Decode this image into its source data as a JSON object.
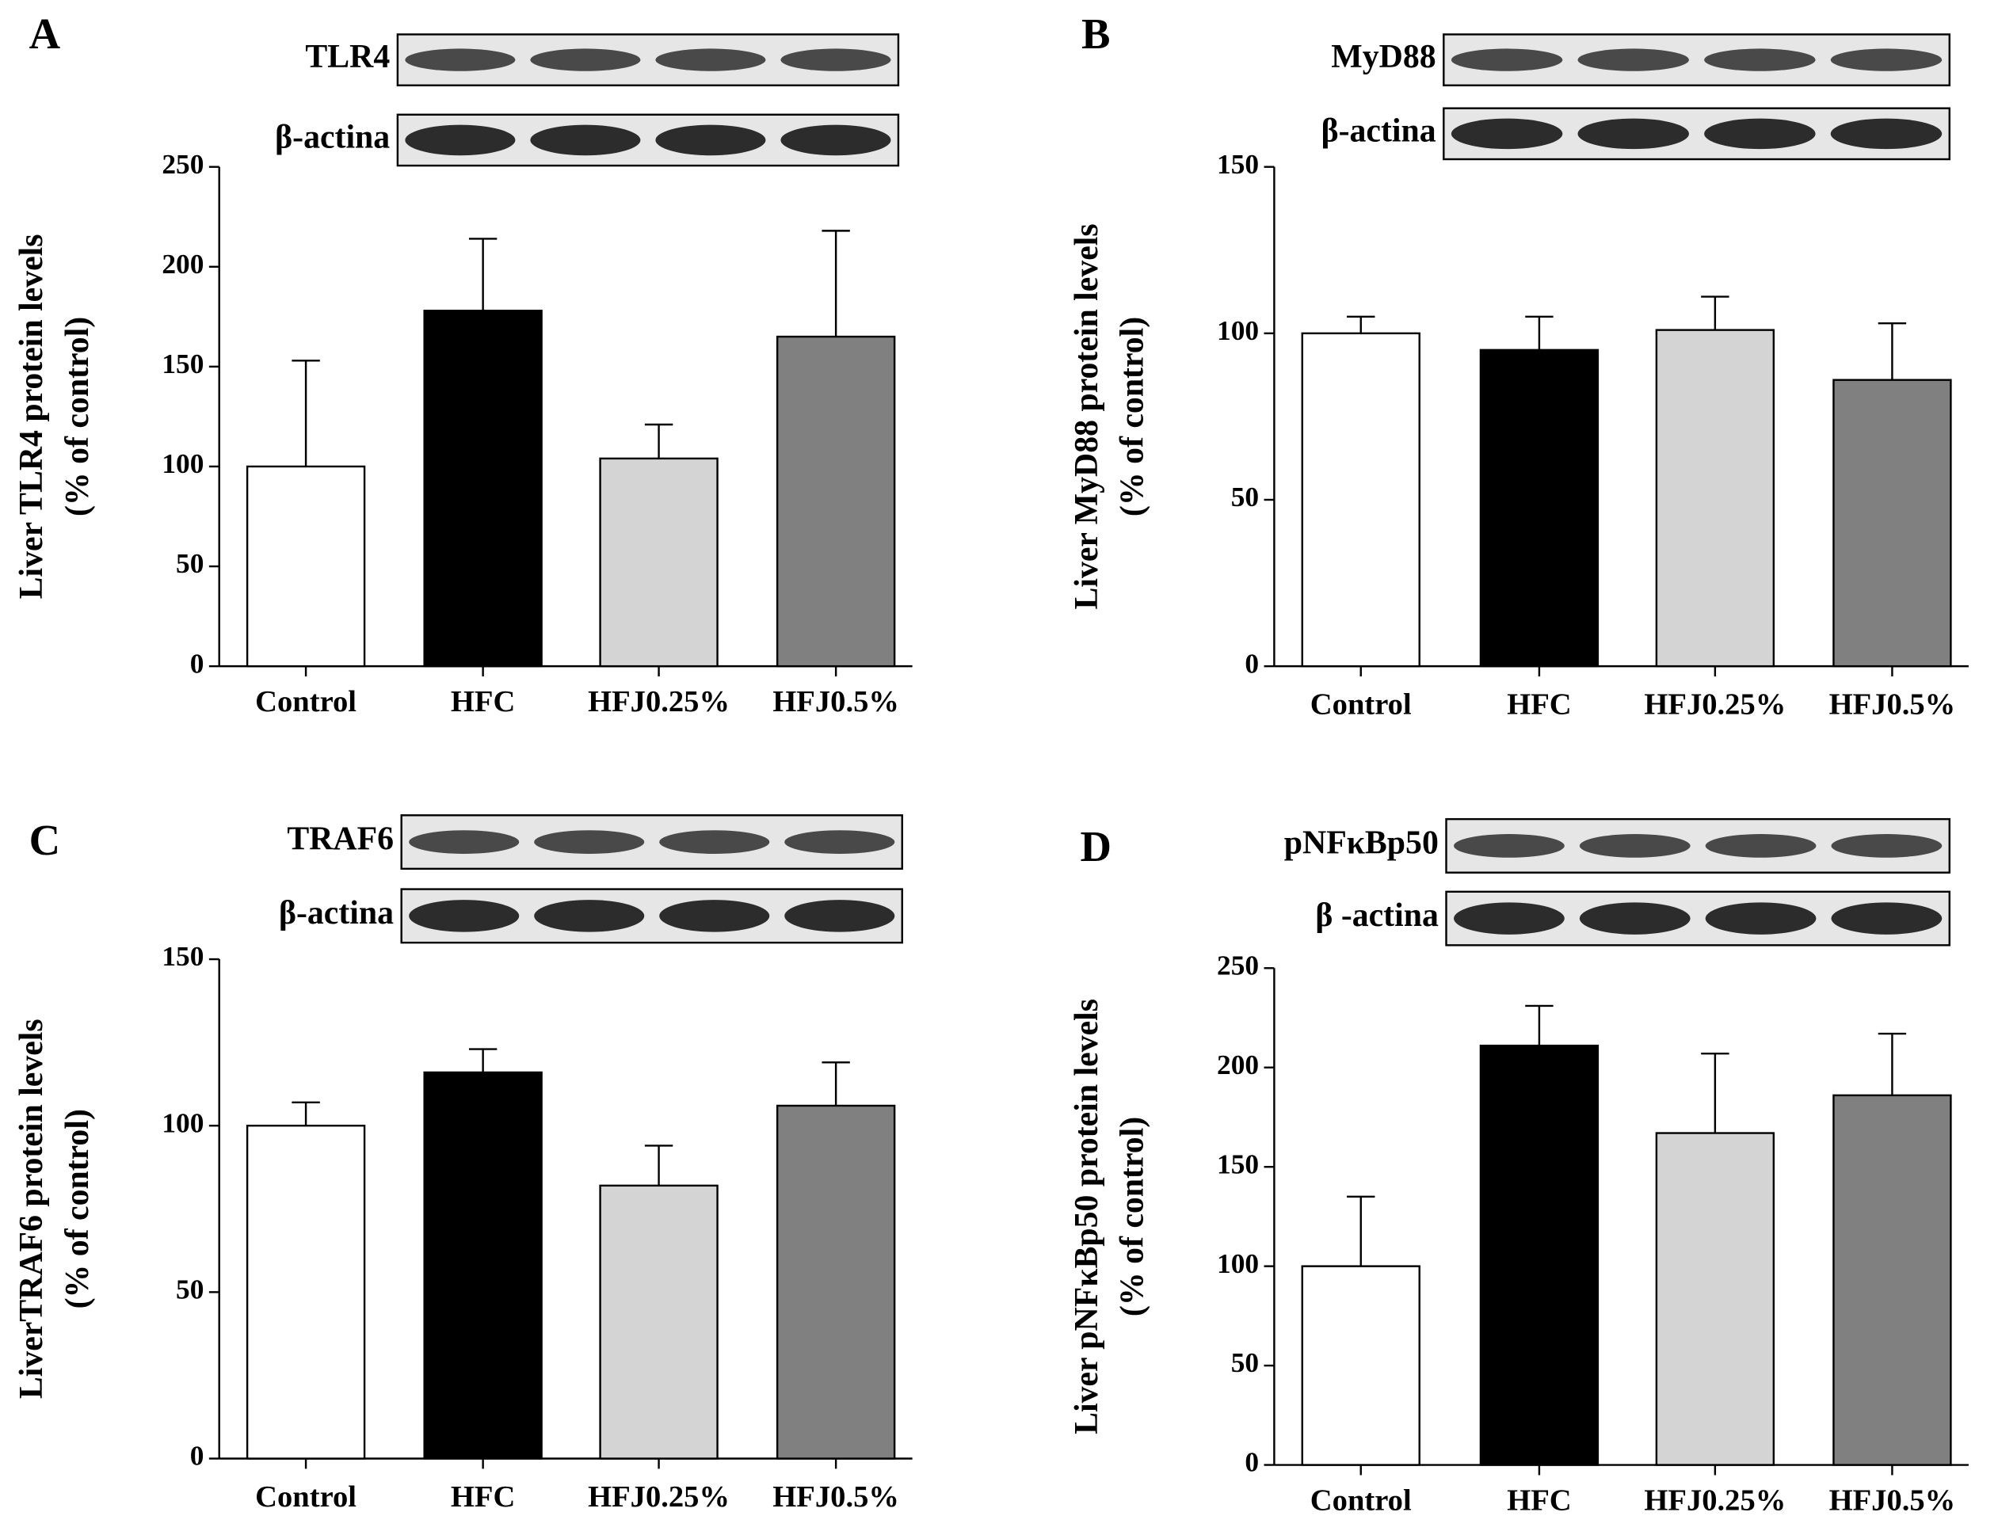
{
  "chart_data": [
    {
      "type": "bar",
      "panel": "A",
      "blot_labels": [
        "TLR4",
        "β-actina"
      ],
      "ylabel": [
        "Liver TLR4 protein levels",
        "(% of control)"
      ],
      "categories": [
        "Control",
        "HFC",
        "HFJ0.25%",
        "HFJ0.5%"
      ],
      "values": [
        100,
        178,
        104,
        165
      ],
      "errors": [
        53,
        36,
        17,
        53
      ],
      "colors": [
        "#ffffff",
        "#000000",
        "#d4d4d4",
        "#808080"
      ],
      "ylim": [
        0,
        250
      ],
      "yticks": [
        0,
        50,
        100,
        150,
        200,
        250
      ]
    },
    {
      "type": "bar",
      "panel": "B",
      "blot_labels": [
        "MyD88",
        "β-actina"
      ],
      "ylabel": [
        "Liver MyD88 protein levels",
        "(% of control)"
      ],
      "categories": [
        "Control",
        "HFC",
        "HFJ0.25%",
        "HFJ0.5%"
      ],
      "values": [
        100,
        95,
        101,
        86
      ],
      "errors": [
        5,
        10,
        10,
        17
      ],
      "colors": [
        "#ffffff",
        "#000000",
        "#d4d4d4",
        "#808080"
      ],
      "ylim": [
        0,
        150
      ],
      "yticks": [
        0,
        50,
        100,
        150
      ]
    },
    {
      "type": "bar",
      "panel": "C",
      "blot_labels": [
        "TRAF6",
        "β-actina"
      ],
      "ylabel": [
        "LiverTRAF6 protein levels",
        "(% of control)"
      ],
      "categories": [
        "Control",
        "HFC",
        "HFJ0.25%",
        "HFJ0.5%"
      ],
      "values": [
        100,
        116,
        82,
        106
      ],
      "errors": [
        7,
        7,
        12,
        13
      ],
      "colors": [
        "#ffffff",
        "#000000",
        "#d4d4d4",
        "#808080"
      ],
      "ylim": [
        0,
        150
      ],
      "yticks": [
        0,
        50,
        100,
        150
      ]
    },
    {
      "type": "bar",
      "panel": "D",
      "blot_labels": [
        "pNFκBp50",
        "β -actina"
      ],
      "ylabel": [
        "Liver pNFκBp50 protein levels",
        "(% of control)"
      ],
      "categories": [
        "Control",
        "HFC",
        "HFJ0.25%",
        "HFJ0.5%"
      ],
      "values": [
        100,
        211,
        167,
        186
      ],
      "errors": [
        35,
        20,
        40,
        31
      ],
      "colors": [
        "#ffffff",
        "#000000",
        "#d4d4d4",
        "#808080"
      ],
      "ylim": [
        0,
        250
      ],
      "yticks": [
        0,
        50,
        100,
        150,
        200,
        250
      ]
    }
  ]
}
